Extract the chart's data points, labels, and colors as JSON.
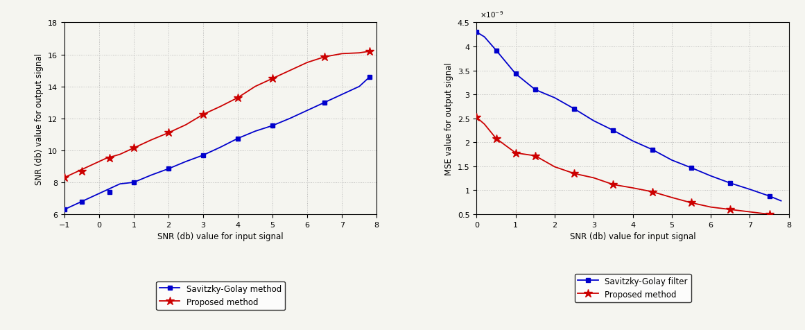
{
  "plot1": {
    "xlabel": "SNR (db) value for input signal",
    "ylabel": "SNR (db) value for output signal",
    "xlim": [
      -1,
      8
    ],
    "ylim": [
      6,
      18
    ],
    "xticks": [
      -1,
      0,
      1,
      2,
      3,
      4,
      5,
      6,
      7,
      8
    ],
    "yticks": [
      6,
      8,
      10,
      12,
      14,
      16,
      18
    ],
    "blue_x": [
      -1.0,
      -0.6,
      -0.2,
      0.2,
      0.6,
      1.0,
      1.5,
      2.0,
      2.5,
      3.0,
      3.5,
      4.0,
      4.5,
      5.0,
      5.5,
      6.0,
      6.5,
      7.0,
      7.5,
      7.8
    ],
    "blue_y": [
      6.3,
      6.7,
      7.1,
      7.5,
      7.9,
      8.0,
      8.45,
      8.85,
      9.3,
      9.7,
      10.2,
      10.75,
      11.2,
      11.55,
      12.0,
      12.5,
      13.0,
      13.5,
      14.0,
      14.6
    ],
    "blue_markers_x": [
      -1.0,
      -0.5,
      0.3,
      1.0,
      2.0,
      3.0,
      4.0,
      5.0,
      6.5,
      7.8
    ],
    "blue_markers_y": [
      6.3,
      6.8,
      7.4,
      8.0,
      8.85,
      9.7,
      10.75,
      11.55,
      13.0,
      14.6
    ],
    "red_x": [
      -1.0,
      -0.6,
      -0.2,
      0.2,
      0.6,
      1.0,
      1.5,
      2.0,
      2.5,
      3.0,
      3.5,
      4.0,
      4.5,
      5.0,
      5.5,
      6.0,
      6.5,
      7.0,
      7.5,
      7.8
    ],
    "red_y": [
      8.3,
      8.7,
      9.1,
      9.5,
      9.75,
      10.15,
      10.65,
      11.1,
      11.6,
      12.25,
      12.75,
      13.3,
      14.0,
      14.5,
      15.0,
      15.5,
      15.85,
      16.05,
      16.1,
      16.2
    ],
    "red_markers_x": [
      -1.0,
      -0.5,
      0.3,
      1.0,
      2.0,
      3.0,
      4.0,
      5.0,
      6.5,
      7.8
    ],
    "red_markers_y": [
      8.3,
      8.7,
      9.5,
      10.15,
      11.1,
      12.25,
      13.3,
      14.5,
      15.85,
      16.2
    ],
    "legend_blue": "Savitzky-Golay method",
    "legend_red": "Proposed method",
    "blue_color": "#0000cc",
    "red_color": "#cc0000"
  },
  "plot2": {
    "xlabel": "SNR (db) value for input signal",
    "ylabel": "MSE value for output signal",
    "xlim": [
      0,
      8
    ],
    "ylim": [
      5e-10,
      4.5e-09
    ],
    "xticks": [
      0,
      1,
      2,
      3,
      4,
      5,
      6,
      7,
      8
    ],
    "yticks": [
      5e-10,
      1e-09,
      1.5e-09,
      2e-09,
      2.5e-09,
      3e-09,
      3.5e-09,
      4e-09,
      4.5e-09
    ],
    "ytick_labels": [
      "0.5",
      "1",
      "1.5",
      "2",
      "2.5",
      "3",
      "3.5",
      "4",
      "4.5"
    ],
    "blue_x": [
      0.0,
      0.2,
      0.5,
      1.0,
      1.5,
      2.0,
      2.5,
      3.0,
      3.5,
      4.0,
      4.5,
      5.0,
      5.5,
      6.0,
      6.5,
      7.0,
      7.5,
      7.8
    ],
    "blue_y": [
      4.3e-09,
      4.2e-09,
      3.92e-09,
      3.43e-09,
      3.1e-09,
      2.93e-09,
      2.7e-09,
      2.45e-09,
      2.25e-09,
      2.03e-09,
      1.85e-09,
      1.63e-09,
      1.47e-09,
      1.3e-09,
      1.15e-09,
      1.02e-09,
      8.8e-10,
      7.8e-10
    ],
    "blue_markers_x": [
      0.0,
      0.5,
      1.0,
      1.5,
      2.5,
      3.5,
      4.5,
      5.5,
      6.5,
      7.5
    ],
    "blue_markers_y": [
      4.3e-09,
      3.92e-09,
      3.43e-09,
      3.1e-09,
      2.7e-09,
      2.25e-09,
      1.85e-09,
      1.47e-09,
      1.15e-09,
      8.8e-10
    ],
    "red_x": [
      0.0,
      0.2,
      0.5,
      1.0,
      1.5,
      2.0,
      2.5,
      3.0,
      3.5,
      4.0,
      4.5,
      5.0,
      5.5,
      6.0,
      6.5,
      7.0,
      7.5,
      7.8
    ],
    "red_y": [
      2.52e-09,
      2.38e-09,
      2.08e-09,
      1.78e-09,
      1.72e-09,
      1.49e-09,
      1.35e-09,
      1.26e-09,
      1.12e-09,
      1.05e-09,
      9.7e-10,
      8.5e-10,
      7.4e-10,
      6.5e-10,
      6e-10,
      5.5e-10,
      5e-10,
      4.7e-10
    ],
    "red_markers_x": [
      0.0,
      0.5,
      1.0,
      1.5,
      2.5,
      3.5,
      4.5,
      5.5,
      6.5,
      7.5
    ],
    "red_markers_y": [
      2.52e-09,
      2.08e-09,
      1.78e-09,
      1.72e-09,
      1.35e-09,
      1.12e-09,
      9.7e-10,
      7.4e-10,
      6e-10,
      5e-10
    ],
    "legend_blue": "Savitzky-Golay filter",
    "legend_red": "Proposed method",
    "blue_color": "#0000cc",
    "red_color": "#cc0000"
  },
  "bg_color": "#f5f5f0",
  "grid_color": "#aaaaaa"
}
